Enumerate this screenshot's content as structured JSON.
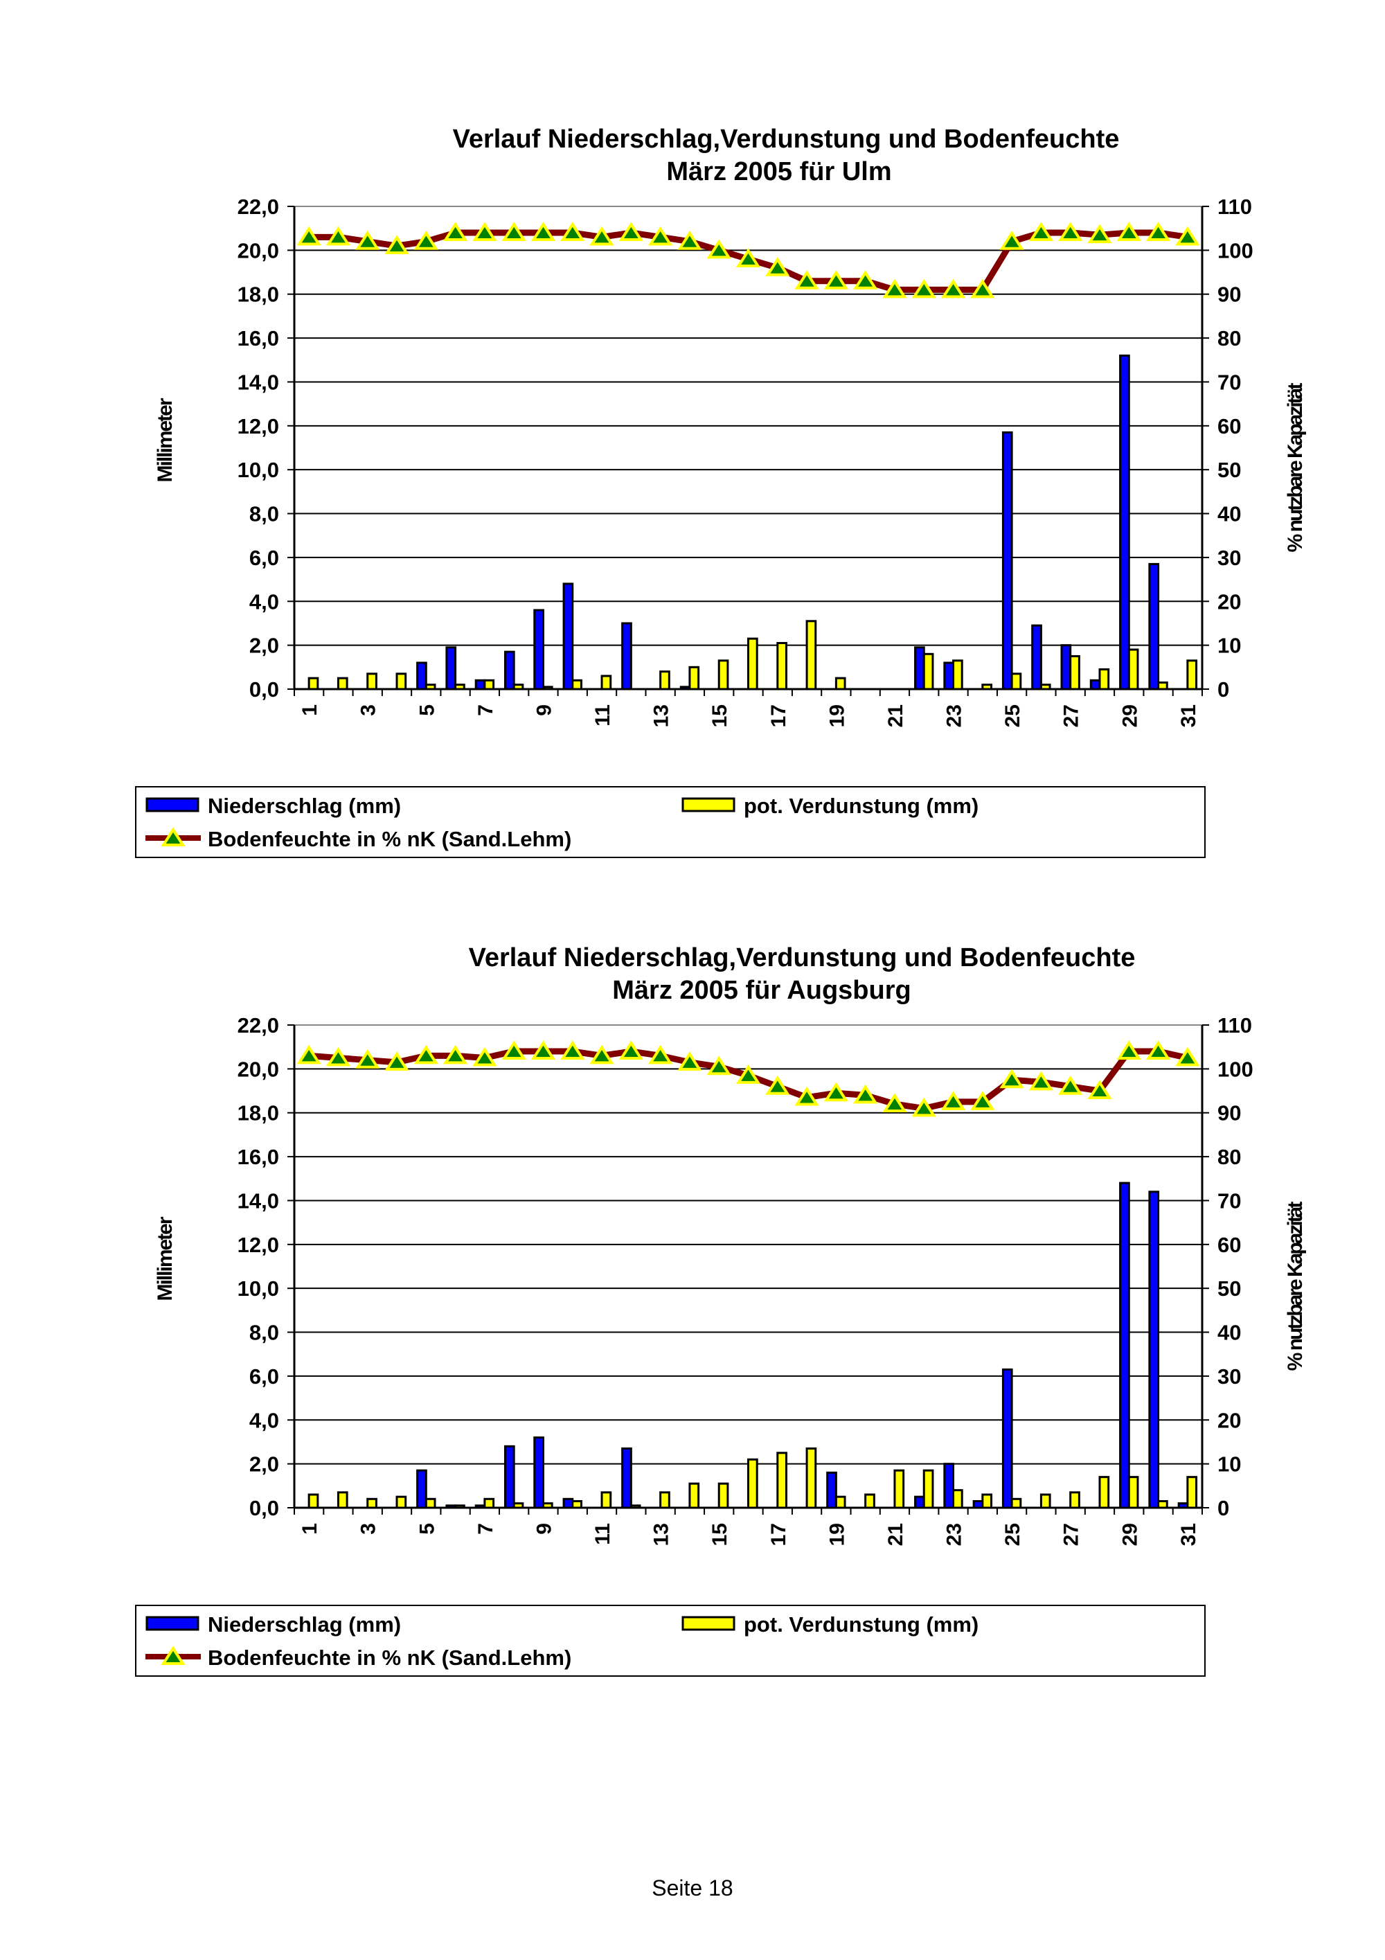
{
  "colors": {
    "precip": "#0000FF",
    "evap": "#FFFF00",
    "soil_line": "#800000",
    "marker_fill": "#008000",
    "marker_edge": "#FFFF00"
  },
  "footer": "Seite 18",
  "chart_data": [
    {
      "type": "bar",
      "title": [
        "Verlauf Niederschlag,Verdunstung und Bodenfeuchte",
        "März  2005 für Ulm"
      ],
      "ylabel": "Millimeter",
      "y2label": "% nutzbare Kapazität",
      "ylim": [
        0,
        22
      ],
      "y2lim": [
        0,
        110
      ],
      "yticks": [
        "0,0",
        "2,0",
        "4,0",
        "6,0",
        "8,0",
        "10,0",
        "12,0",
        "14,0",
        "16,0",
        "18,0",
        "20,0",
        "22,0"
      ],
      "y2ticks": [
        "0",
        "10",
        "20",
        "30",
        "40",
        "50",
        "60",
        "70",
        "80",
        "90",
        "100",
        "110"
      ],
      "xticks": [
        "1",
        "3",
        "5",
        "7",
        "9",
        "11",
        "13",
        "15",
        "17",
        "19",
        "21",
        "23",
        "25",
        "27",
        "29",
        "31"
      ],
      "grid": true,
      "legend": {
        "placement": "bottom",
        "entries": [
          "Niederschlag (mm)",
          "pot. Verdunstung (mm)",
          "Bodenfeuchte in % nK (Sand.Lehm)"
        ]
      },
      "x": [
        1,
        2,
        3,
        4,
        5,
        6,
        7,
        8,
        9,
        10,
        11,
        12,
        13,
        14,
        15,
        16,
        17,
        18,
        19,
        20,
        21,
        22,
        23,
        24,
        25,
        26,
        27,
        28,
        29,
        30,
        31
      ],
      "series": [
        {
          "name": "Niederschlag (mm)",
          "type": "bar",
          "axis": "left",
          "values": [
            0,
            0,
            0,
            0,
            1.2,
            1.9,
            0.4,
            1.7,
            3.6,
            4.8,
            0,
            3.0,
            0,
            0.1,
            0,
            0,
            0,
            0,
            0,
            0,
            0,
            1.9,
            1.2,
            0,
            11.7,
            2.9,
            2.0,
            0.4,
            15.2,
            5.7,
            0
          ]
        },
        {
          "name": "pot. Verdunstung (mm)",
          "type": "bar",
          "axis": "left",
          "values": [
            0.5,
            0.5,
            0.7,
            0.7,
            0.2,
            0.2,
            0.4,
            0.2,
            0.1,
            0.4,
            0.6,
            0,
            0.8,
            1.0,
            1.3,
            2.3,
            2.1,
            3.1,
            0.5,
            0,
            0,
            1.6,
            1.3,
            0.2,
            0.7,
            0.2,
            1.5,
            0.9,
            1.8,
            0.3,
            1.3
          ]
        },
        {
          "name": "Bodenfeuchte in % nK (Sand.Lehm)",
          "type": "line",
          "axis": "right",
          "values": [
            103,
            103,
            102,
            101,
            102,
            104,
            104,
            104,
            104,
            104,
            103,
            104,
            103,
            102,
            100,
            98,
            96,
            93,
            93,
            93,
            91,
            91,
            91,
            91,
            102,
            104,
            104,
            103.5,
            104,
            104,
            103
          ]
        }
      ]
    },
    {
      "type": "bar",
      "title": [
        "Verlauf Niederschlag,Verdunstung und Bodenfeuchte",
        "März 2005 für Augsburg"
      ],
      "ylabel": "Millimeter",
      "y2label": "% nutzbare Kapazität",
      "ylim": [
        0,
        22
      ],
      "y2lim": [
        0,
        110
      ],
      "yticks": [
        "0,0",
        "2,0",
        "4,0",
        "6,0",
        "8,0",
        "10,0",
        "12,0",
        "14,0",
        "16,0",
        "18,0",
        "20,0",
        "22,0"
      ],
      "y2ticks": [
        "0",
        "10",
        "20",
        "30",
        "40",
        "50",
        "60",
        "70",
        "80",
        "90",
        "100",
        "110"
      ],
      "xticks": [
        "1",
        "3",
        "5",
        "7",
        "9",
        "11",
        "13",
        "15",
        "17",
        "19",
        "21",
        "23",
        "25",
        "27",
        "29",
        "31"
      ],
      "grid": true,
      "legend": {
        "placement": "bottom",
        "entries": [
          "Niederschlag (mm)",
          "pot. Verdunstung (mm)",
          "Bodenfeuchte in % nK (Sand.Lehm)"
        ]
      },
      "x": [
        1,
        2,
        3,
        4,
        5,
        6,
        7,
        8,
        9,
        10,
        11,
        12,
        13,
        14,
        15,
        16,
        17,
        18,
        19,
        20,
        21,
        22,
        23,
        24,
        25,
        26,
        27,
        28,
        29,
        30,
        31
      ],
      "series": [
        {
          "name": "Niederschlag (mm)",
          "type": "bar",
          "axis": "left",
          "values": [
            0,
            0,
            0,
            0,
            1.7,
            0.1,
            0.1,
            2.8,
            3.2,
            0.4,
            0,
            2.7,
            0,
            0,
            0,
            0,
            0,
            0,
            1.6,
            0,
            0,
            0.5,
            2.0,
            0.3,
            6.3,
            0,
            0,
            0,
            14.8,
            14.4,
            0.2
          ]
        },
        {
          "name": "pot. Verdunstung (mm)",
          "type": "bar",
          "axis": "left",
          "values": [
            0.6,
            0.7,
            0.4,
            0.5,
            0.4,
            0.1,
            0.4,
            0.2,
            0.2,
            0.3,
            0.7,
            0.1,
            0.7,
            1.1,
            1.1,
            2.2,
            2.5,
            2.7,
            0.5,
            0.6,
            1.7,
            1.7,
            0.8,
            0.6,
            0.4,
            0.6,
            0.7,
            1.4,
            1.4,
            0.3,
            1.4
          ]
        },
        {
          "name": "Bodenfeuchte in % nK (Sand.Lehm)",
          "type": "line",
          "axis": "right",
          "values": [
            103,
            102.5,
            102,
            101.5,
            103,
            103,
            102.5,
            104,
            104,
            104,
            103,
            104,
            103,
            101.5,
            100.5,
            98.5,
            96,
            93.5,
            94.5,
            94,
            92,
            91,
            92.5,
            92.5,
            97.5,
            97,
            96,
            95,
            104,
            104,
            102.5
          ]
        }
      ]
    }
  ]
}
